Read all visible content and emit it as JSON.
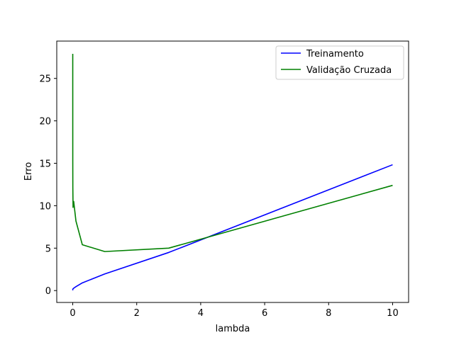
{
  "chart_data": {
    "type": "line",
    "xlabel": "lambda",
    "ylabel": "Erro",
    "xlim": [
      -0.5,
      10.5
    ],
    "ylim": [
      -1.4,
      29.4
    ],
    "xticks": [
      0,
      2,
      4,
      6,
      8,
      10
    ],
    "yticks": [
      0,
      5,
      10,
      15,
      20,
      25
    ],
    "grid": false,
    "legend_position": "top-right",
    "series": [
      {
        "name": "Treinamento",
        "color": "#0000ff",
        "x": [
          0,
          0.001,
          0.003,
          0.01,
          0.03,
          0.1,
          0.3,
          1,
          3,
          10
        ],
        "y": [
          0.03,
          0.11,
          0.17,
          0.22,
          0.28,
          0.46,
          0.91,
          1.96,
          4.49,
          14.83
        ]
      },
      {
        "name": "Validação Cruzada",
        "color": "#008000",
        "x": [
          0,
          0.001,
          0.003,
          0.01,
          0.03,
          0.1,
          0.3,
          1,
          3,
          10
        ],
        "y": [
          27.9,
          15.2,
          12.1,
          9.8,
          10.5,
          8.2,
          5.4,
          4.6,
          5.0,
          12.4
        ]
      }
    ]
  }
}
